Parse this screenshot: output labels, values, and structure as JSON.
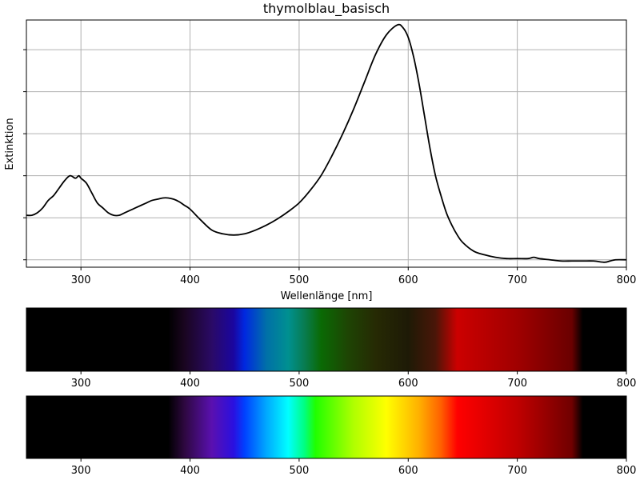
{
  "chart_data": [
    {
      "type": "line",
      "title": "thymolblau_basisch",
      "xlabel": "Wellenlänge [nm]",
      "ylabel": "Extinktion",
      "xlim": [
        250,
        800
      ],
      "ylim": [
        -0.03,
        0.97
      ],
      "grid": true,
      "x_ticks": [
        300,
        400,
        500,
        600,
        700,
        800
      ],
      "y_ticks": [
        0.0,
        0.17,
        0.34,
        0.51,
        0.68,
        0.85
      ],
      "y_tick_labels_shown": false,
      "line_color": "#000000",
      "series": [
        {
          "x": [
            250,
            255,
            260,
            265,
            270,
            275,
            280,
            285,
            290,
            295,
            298,
            300,
            305,
            310,
            315,
            320,
            325,
            330,
            335,
            340,
            345,
            350,
            355,
            360,
            365,
            370,
            375,
            380,
            385,
            390,
            395,
            400,
            410,
            420,
            430,
            440,
            450,
            460,
            470,
            480,
            490,
            500,
            510,
            520,
            530,
            540,
            550,
            560,
            570,
            580,
            590,
            595,
            600,
            605,
            610,
            615,
            620,
            625,
            630,
            635,
            640,
            645,
            650,
            660,
            670,
            680,
            690,
            700,
            710,
            715,
            720,
            730,
            740,
            750,
            760,
            770,
            780,
            785,
            790,
            800
          ],
          "y": [
            0.18,
            0.18,
            0.19,
            0.21,
            0.24,
            0.26,
            0.29,
            0.32,
            0.34,
            0.33,
            0.34,
            0.33,
            0.31,
            0.27,
            0.23,
            0.21,
            0.19,
            0.18,
            0.18,
            0.19,
            0.2,
            0.21,
            0.22,
            0.23,
            0.24,
            0.245,
            0.25,
            0.25,
            0.245,
            0.235,
            0.22,
            0.205,
            0.16,
            0.12,
            0.105,
            0.1,
            0.105,
            0.12,
            0.14,
            0.165,
            0.195,
            0.23,
            0.28,
            0.34,
            0.42,
            0.51,
            0.61,
            0.72,
            0.83,
            0.91,
            0.95,
            0.94,
            0.9,
            0.82,
            0.71,
            0.58,
            0.45,
            0.34,
            0.26,
            0.19,
            0.14,
            0.1,
            0.07,
            0.035,
            0.02,
            0.01,
            0.005,
            0.005,
            0.005,
            0.01,
            0.005,
            0.0,
            -0.005,
            -0.005,
            -0.005,
            -0.005,
            -0.01,
            -0.005,
            0.0,
            0.0
          ]
        }
      ]
    },
    {
      "type": "heatmap",
      "description_shown": false,
      "xlim": [
        250,
        800
      ],
      "x_ticks": [
        300,
        400,
        500,
        600,
        700,
        800
      ],
      "stops": [
        {
          "x": 250,
          "color": "#000000"
        },
        {
          "x": 380,
          "color": "#000000"
        },
        {
          "x": 395,
          "color": "#1a0520"
        },
        {
          "x": 420,
          "color": "#2a0a66"
        },
        {
          "x": 440,
          "color": "#1a06a0"
        },
        {
          "x": 450,
          "color": "#0028e0"
        },
        {
          "x": 470,
          "color": "#0070a8"
        },
        {
          "x": 490,
          "color": "#009090"
        },
        {
          "x": 505,
          "color": "#087c50"
        },
        {
          "x": 520,
          "color": "#0a6a04"
        },
        {
          "x": 545,
          "color": "#1e4404"
        },
        {
          "x": 570,
          "color": "#262a04"
        },
        {
          "x": 600,
          "color": "#1e1a06"
        },
        {
          "x": 625,
          "color": "#4a1608"
        },
        {
          "x": 645,
          "color": "#cc0000"
        },
        {
          "x": 700,
          "color": "#a00000"
        },
        {
          "x": 750,
          "color": "#6a0000"
        },
        {
          "x": 760,
          "color": "#000000"
        },
        {
          "x": 800,
          "color": "#000000"
        }
      ]
    },
    {
      "type": "heatmap",
      "description_shown": false,
      "xlim": [
        250,
        800
      ],
      "x_ticks": [
        300,
        400,
        500,
        600,
        700,
        800
      ],
      "stops": [
        {
          "x": 250,
          "color": "#000000"
        },
        {
          "x": 380,
          "color": "#000000"
        },
        {
          "x": 395,
          "color": "#2e0840"
        },
        {
          "x": 420,
          "color": "#5a10b0"
        },
        {
          "x": 440,
          "color": "#2a10e0"
        },
        {
          "x": 450,
          "color": "#0040ff"
        },
        {
          "x": 470,
          "color": "#00a8ff"
        },
        {
          "x": 490,
          "color": "#00ffff"
        },
        {
          "x": 505,
          "color": "#00ff80"
        },
        {
          "x": 515,
          "color": "#20ff00"
        },
        {
          "x": 550,
          "color": "#b0ff00"
        },
        {
          "x": 580,
          "color": "#ffff00"
        },
        {
          "x": 610,
          "color": "#ffb000"
        },
        {
          "x": 630,
          "color": "#ff6000"
        },
        {
          "x": 645,
          "color": "#ff0000"
        },
        {
          "x": 700,
          "color": "#c00000"
        },
        {
          "x": 750,
          "color": "#700000"
        },
        {
          "x": 760,
          "color": "#000000"
        },
        {
          "x": 800,
          "color": "#000000"
        }
      ]
    }
  ]
}
